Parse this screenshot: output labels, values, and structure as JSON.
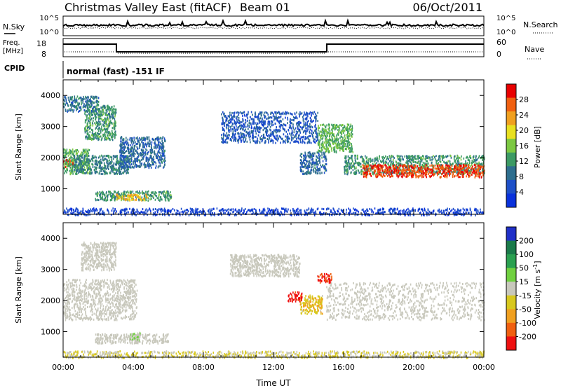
{
  "header": {
    "title": "Christmas Valley East (fitACF)",
    "beam": "Beam 01",
    "date": "06/Oct/2011"
  },
  "strip": {
    "nsky_label": "N.Sky",
    "nsearch_label": "N.Search",
    "noise_ticks_left": [
      "10^5",
      "10^0"
    ],
    "noise_ticks_right": [
      "10^5",
      "10^0"
    ],
    "freq_label_line1": "Freq.",
    "freq_label_line2": "[MHz]",
    "freq_ticks": [
      "18",
      "8"
    ],
    "nave_label": "Nave",
    "nave_ticks": [
      "60",
      "0"
    ],
    "cpid_label": "CPID",
    "cpid_text": "normal (fast) -151 IF"
  },
  "colors": {
    "power": [
      "#0a32dc",
      "#1e50c8",
      "#2e6e8e",
      "#3c9a64",
      "#7cc842",
      "#e8e020",
      "#f0a020",
      "#f06010",
      "#e80000"
    ],
    "velocity": [
      "#2030c8",
      "#1a7a4a",
      "#2aa050",
      "#70d040",
      "#c8c8bc",
      "#d8c81e",
      "#f0a020",
      "#f06010",
      "#ee1010"
    ]
  },
  "chart_data": [
    {
      "type": "heatmap",
      "parameter": "Power",
      "colorbar_label": "Power [dB]",
      "colorbar_ticks": [
        "28",
        "24",
        "20",
        "16",
        "12",
        "8",
        "4"
      ],
      "colorbar_range": [
        0,
        32
      ],
      "ylabel": "Slant Range [km]",
      "y_ticks": [
        1000,
        2000,
        3000,
        4000
      ],
      "ylim": [
        180,
        4500
      ],
      "xlim": [
        0,
        24
      ],
      "regions": [
        {
          "t": [
            0.0,
            0.6
          ],
          "r": [
            1700,
            2000
          ],
          "level": 28
        },
        {
          "t": [
            0.0,
            1.5
          ],
          "r": [
            1500,
            2300
          ],
          "level": 14
        },
        {
          "t": [
            0.6,
            3.8
          ],
          "r": [
            1500,
            2100
          ],
          "level": 10
        },
        {
          "t": [
            1.2,
            3.0
          ],
          "r": [
            2600,
            3700
          ],
          "level": 12
        },
        {
          "t": [
            0.0,
            2.0
          ],
          "r": [
            3500,
            4000
          ],
          "level": 9
        },
        {
          "t": [
            3.2,
            5.8
          ],
          "r": [
            1700,
            2700
          ],
          "level": 8
        },
        {
          "t": [
            1.8,
            6.2
          ],
          "r": [
            650,
            950
          ],
          "level": 12
        },
        {
          "t": [
            3.0,
            4.8
          ],
          "r": [
            650,
            850
          ],
          "level": 22
        },
        {
          "t": [
            9.0,
            14.5
          ],
          "r": [
            2500,
            3500
          ],
          "level": 6
        },
        {
          "t": [
            13.5,
            15.0
          ],
          "r": [
            1500,
            2200
          ],
          "level": 8
        },
        {
          "t": [
            14.5,
            16.5
          ],
          "r": [
            2200,
            3100
          ],
          "level": 14
        },
        {
          "t": [
            16.0,
            24.0
          ],
          "r": [
            1500,
            2100
          ],
          "level": 12
        },
        {
          "t": [
            17.0,
            24.0
          ],
          "r": [
            1400,
            1800
          ],
          "level": 28
        },
        {
          "t": [
            0.0,
            24.0
          ],
          "r": [
            180,
            400
          ],
          "level": 4
        }
      ]
    },
    {
      "type": "heatmap",
      "parameter": "Velocity",
      "colorbar_label": "Velocity [m s^-1]",
      "colorbar_ticks": [
        "200",
        "100",
        "50",
        "15",
        "-15",
        "-50",
        "-100",
        "-200"
      ],
      "colorbar_range": [
        -250,
        250
      ],
      "ylabel": "Slant Range [km]",
      "y_ticks": [
        1000,
        2000,
        3000,
        4000
      ],
      "ylim": [
        180,
        4500
      ],
      "xlim": [
        0,
        24
      ],
      "x_ticks": [
        "00:00",
        "04:00",
        "08:00",
        "12:00",
        "16:00",
        "20:00",
        "00:00"
      ],
      "xlabel": "Time UT",
      "regions": [
        {
          "t": [
            0.0,
            4.2
          ],
          "r": [
            1400,
            2700
          ],
          "level": 0
        },
        {
          "t": [
            1.8,
            6.0
          ],
          "r": [
            650,
            950
          ],
          "level": 0
        },
        {
          "t": [
            3.8,
            4.4
          ],
          "r": [
            700,
            1000
          ],
          "level": 30
        },
        {
          "t": [
            1.0,
            3.0
          ],
          "r": [
            3000,
            3900
          ],
          "level": 0
        },
        {
          "t": [
            9.5,
            13.5
          ],
          "r": [
            2800,
            3500
          ],
          "level": 0
        },
        {
          "t": [
            13.5,
            14.8
          ],
          "r": [
            1600,
            2200
          ],
          "level": -70
        },
        {
          "t": [
            12.8,
            13.6
          ],
          "r": [
            2000,
            2300
          ],
          "level": -220
        },
        {
          "t": [
            14.5,
            15.3
          ],
          "r": [
            2600,
            2900
          ],
          "level": -220
        },
        {
          "t": [
            15.0,
            24.0
          ],
          "r": [
            1400,
            2600
          ],
          "level": 0
        },
        {
          "t": [
            0.0,
            24.0
          ],
          "r": [
            180,
            400
          ],
          "level": -30
        }
      ]
    }
  ]
}
